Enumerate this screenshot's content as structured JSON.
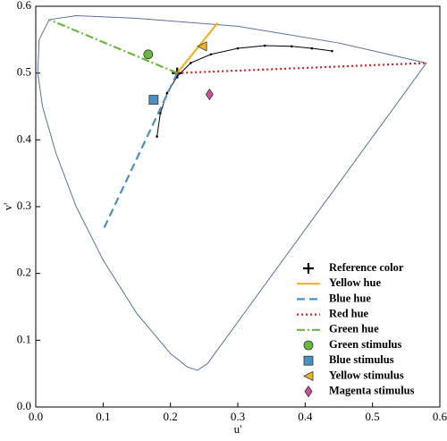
{
  "chart_data": {
    "type": "line",
    "x_label": "u'",
    "y_label": "v'",
    "xlim": [
      0,
      0.6
    ],
    "ylim": [
      0,
      0.6
    ],
    "xticks": [
      {
        "value": 0,
        "label": "0.0"
      },
      0.1,
      0.2,
      0.3,
      0.4,
      0.5,
      0.6
    ],
    "yticks": [
      {
        "value": 0,
        "label": "0.0"
      },
      0.1,
      0.2,
      0.3,
      0.4,
      0.5,
      0.6
    ],
    "locus": {
      "color": "#5a6fa0",
      "x": [
        0.58,
        0.45,
        0.3,
        0.15,
        0.06,
        0.02,
        0.005,
        0.003,
        0.01,
        0.03,
        0.06,
        0.1,
        0.15,
        0.2,
        0.225,
        0.24,
        0.255,
        0.58
      ],
      "y": [
        0.515,
        0.545,
        0.57,
        0.582,
        0.586,
        0.58,
        0.55,
        0.5,
        0.45,
        0.38,
        0.3,
        0.22,
        0.14,
        0.08,
        0.06,
        0.055,
        0.065,
        0.515
      ]
    },
    "blackbody": {
      "color": "#000000",
      "x": [
        0.18,
        0.185,
        0.195,
        0.21,
        0.23,
        0.26,
        0.3,
        0.34,
        0.38,
        0.41,
        0.44
      ],
      "y": [
        0.405,
        0.44,
        0.47,
        0.495,
        0.515,
        0.528,
        0.537,
        0.541,
        0.54,
        0.537,
        0.533
      ]
    },
    "series": [
      {
        "name": "Reference color",
        "color": "#000000",
        "marker": "plus",
        "x": [
          0.21
        ],
        "y": [
          0.5
        ]
      },
      {
        "name": "Yellow hue",
        "color": "#f0b323",
        "style": "solid",
        "x": [
          0.21,
          0.27
        ],
        "y": [
          0.5,
          0.575
        ]
      },
      {
        "name": "Blue hue",
        "color": "#4a90c4",
        "style": "dashed",
        "x": [
          0.21,
          0.1
        ],
        "y": [
          0.5,
          0.265
        ]
      },
      {
        "name": "Red hue",
        "color": "#e02020",
        "style": "dotted",
        "x": [
          0.21,
          0.58
        ],
        "y": [
          0.5,
          0.515
        ]
      },
      {
        "name": "Green hue",
        "color": "#6ab83a",
        "style": "dashdot",
        "x": [
          0.21,
          0.02
        ],
        "y": [
          0.5,
          0.58
        ]
      },
      {
        "name": "Green stimulus",
        "color": "#6ab83a",
        "marker": "circle",
        "x": [
          0.167
        ],
        "y": [
          0.528
        ]
      },
      {
        "name": "Blue stimulus",
        "color": "#4a90c4",
        "marker": "square",
        "x": [
          0.175
        ],
        "y": [
          0.46
        ]
      },
      {
        "name": "Yellow stimulus",
        "color": "#f0b323",
        "marker": "triangle-left",
        "x": [
          0.247
        ],
        "y": [
          0.54
        ]
      },
      {
        "name": "Magenta stimulus",
        "color": "#d04f9a",
        "marker": "diamond",
        "x": [
          0.258
        ],
        "y": [
          0.468
        ]
      }
    ]
  }
}
